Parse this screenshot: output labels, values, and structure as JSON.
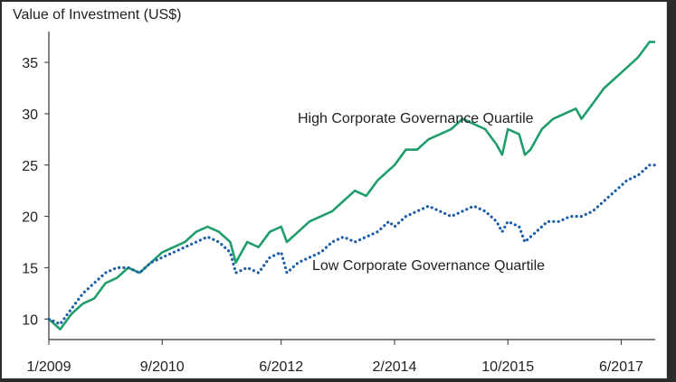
{
  "chart_data": {
    "type": "line",
    "title": "Value of Investment (US$)",
    "xlabel": "",
    "ylabel": "",
    "ylim": [
      8,
      38
    ],
    "xlim": [
      "2009-01",
      "2017-12"
    ],
    "y_ticks": [
      "10",
      "15",
      "20",
      "25",
      "30",
      "35"
    ],
    "y_tick_values": [
      10,
      15,
      20,
      25,
      30,
      35
    ],
    "x_ticks": [
      "1/2009",
      "9/2010",
      "6/2012",
      "2/2014",
      "10/2015",
      "6/2017"
    ],
    "x_tick_values": [
      "2009-01",
      "2010-09",
      "2012-06",
      "2014-02",
      "2015-10",
      "2017-06"
    ],
    "grid": false,
    "legend": "none",
    "series": [
      {
        "name": "High Corporate Governance Quartile",
        "color": "#1f9e6b",
        "style": "solid",
        "label_position": "above-right",
        "points": [
          [
            "2009-01",
            10.0
          ],
          [
            "2009-03",
            9.0
          ],
          [
            "2009-05",
            10.5
          ],
          [
            "2009-07",
            11.5
          ],
          [
            "2009-09",
            12.0
          ],
          [
            "2009-11",
            13.5
          ],
          [
            "2010-01",
            14.0
          ],
          [
            "2010-03",
            15.0
          ],
          [
            "2010-05",
            14.5
          ],
          [
            "2010-07",
            15.5
          ],
          [
            "2010-09",
            16.5
          ],
          [
            "2010-11",
            17.0
          ],
          [
            "2011-01",
            17.5
          ],
          [
            "2011-03",
            18.5
          ],
          [
            "2011-05",
            19.0
          ],
          [
            "2011-07",
            18.5
          ],
          [
            "2011-09",
            17.5
          ],
          [
            "2011-10",
            15.5
          ],
          [
            "2011-12",
            17.5
          ],
          [
            "2012-02",
            17.0
          ],
          [
            "2012-04",
            18.5
          ],
          [
            "2012-06",
            19.0
          ],
          [
            "2012-07",
            17.5
          ],
          [
            "2012-09",
            18.5
          ],
          [
            "2012-11",
            19.5
          ],
          [
            "2013-01",
            20.0
          ],
          [
            "2013-03",
            20.5
          ],
          [
            "2013-05",
            21.5
          ],
          [
            "2013-07",
            22.5
          ],
          [
            "2013-09",
            22.0
          ],
          [
            "2013-11",
            23.5
          ],
          [
            "2014-01",
            24.5
          ],
          [
            "2014-02",
            25.0
          ],
          [
            "2014-04",
            26.5
          ],
          [
            "2014-06",
            26.5
          ],
          [
            "2014-08",
            27.5
          ],
          [
            "2014-10",
            28.0
          ],
          [
            "2014-12",
            28.5
          ],
          [
            "2015-02",
            29.5
          ],
          [
            "2015-04",
            29.0
          ],
          [
            "2015-06",
            28.5
          ],
          [
            "2015-08",
            27.0
          ],
          [
            "2015-09",
            26.0
          ],
          [
            "2015-10",
            28.5
          ],
          [
            "2015-12",
            28.0
          ],
          [
            "2016-01",
            26.0
          ],
          [
            "2016-02",
            26.5
          ],
          [
            "2016-04",
            28.5
          ],
          [
            "2016-06",
            29.5
          ],
          [
            "2016-08",
            30.0
          ],
          [
            "2016-10",
            30.5
          ],
          [
            "2016-11",
            29.5
          ],
          [
            "2017-01",
            31.0
          ],
          [
            "2017-03",
            32.5
          ],
          [
            "2017-05",
            33.5
          ],
          [
            "2017-07",
            34.5
          ],
          [
            "2017-09",
            35.5
          ],
          [
            "2017-11",
            37.0
          ],
          [
            "2017-12",
            37.0
          ]
        ]
      },
      {
        "name": "Low Corporate Governance Quartile",
        "color": "#1e5fa8",
        "style": "dotted",
        "label_position": "below-right",
        "points": [
          [
            "2009-01",
            10.0
          ],
          [
            "2009-03",
            9.5
          ],
          [
            "2009-05",
            11.0
          ],
          [
            "2009-07",
            12.5
          ],
          [
            "2009-09",
            13.5
          ],
          [
            "2009-11",
            14.5
          ],
          [
            "2010-01",
            15.0
          ],
          [
            "2010-03",
            15.0
          ],
          [
            "2010-05",
            14.5
          ],
          [
            "2010-07",
            15.5
          ],
          [
            "2010-09",
            16.0
          ],
          [
            "2010-11",
            16.5
          ],
          [
            "2011-01",
            17.0
          ],
          [
            "2011-03",
            17.5
          ],
          [
            "2011-05",
            18.0
          ],
          [
            "2011-07",
            17.5
          ],
          [
            "2011-09",
            16.5
          ],
          [
            "2011-10",
            14.5
          ],
          [
            "2011-12",
            15.0
          ],
          [
            "2012-02",
            14.5
          ],
          [
            "2012-04",
            16.0
          ],
          [
            "2012-06",
            16.5
          ],
          [
            "2012-07",
            14.5
          ],
          [
            "2012-09",
            15.5
          ],
          [
            "2012-11",
            16.0
          ],
          [
            "2013-01",
            16.5
          ],
          [
            "2013-03",
            17.5
          ],
          [
            "2013-05",
            18.0
          ],
          [
            "2013-07",
            17.5
          ],
          [
            "2013-09",
            18.0
          ],
          [
            "2013-11",
            18.5
          ],
          [
            "2014-01",
            19.5
          ],
          [
            "2014-02",
            19.0
          ],
          [
            "2014-04",
            20.0
          ],
          [
            "2014-06",
            20.5
          ],
          [
            "2014-08",
            21.0
          ],
          [
            "2014-10",
            20.5
          ],
          [
            "2014-12",
            20.0
          ],
          [
            "2015-02",
            20.5
          ],
          [
            "2015-04",
            21.0
          ],
          [
            "2015-06",
            20.5
          ],
          [
            "2015-08",
            19.5
          ],
          [
            "2015-09",
            18.5
          ],
          [
            "2015-10",
            19.5
          ],
          [
            "2015-12",
            19.0
          ],
          [
            "2016-01",
            17.5
          ],
          [
            "2016-03",
            18.5
          ],
          [
            "2016-05",
            19.5
          ],
          [
            "2016-07",
            19.5
          ],
          [
            "2016-09",
            20.0
          ],
          [
            "2016-11",
            20.0
          ],
          [
            "2017-01",
            20.5
          ],
          [
            "2017-03",
            21.5
          ],
          [
            "2017-05",
            22.5
          ],
          [
            "2017-07",
            23.5
          ],
          [
            "2017-09",
            24.0
          ],
          [
            "2017-11",
            25.0
          ],
          [
            "2017-12",
            25.0
          ]
        ]
      }
    ]
  }
}
